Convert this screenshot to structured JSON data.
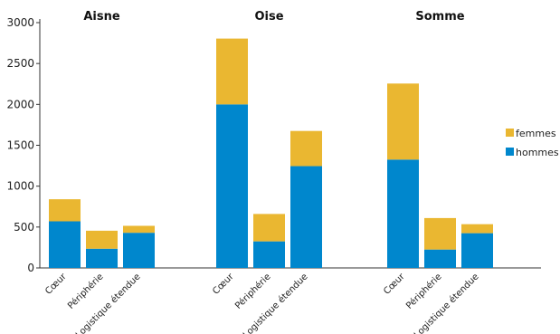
{
  "chart_data": {
    "type": "bar",
    "stacked": true,
    "groups": [
      {
        "title": "Aisne",
        "categories": [
          "Cœur",
          "Périphérie",
          "Logistique  étendue"
        ],
        "series": [
          {
            "name": "hommes",
            "values": [
              570,
              235,
              430
            ]
          },
          {
            "name": "femmes",
            "values": [
              270,
              220,
              85
            ]
          }
        ]
      },
      {
        "title": "Oise",
        "categories": [
          "Cœur",
          "Périphérie",
          "Logistique  étendue"
        ],
        "series": [
          {
            "name": "hommes",
            "values": [
              2000,
              325,
              1245
            ]
          },
          {
            "name": "femmes",
            "values": [
              805,
              335,
              430
            ]
          }
        ]
      },
      {
        "title": "Somme",
        "categories": [
          "Cœur",
          "Périphérie",
          "Logistique  étendue"
        ],
        "series": [
          {
            "name": "hommes",
            "values": [
              1325,
              225,
              425
            ]
          },
          {
            "name": "femmes",
            "values": [
              930,
              385,
              110
            ]
          }
        ]
      }
    ],
    "ylim": [
      0,
      3000
    ],
    "yticks": [
      0,
      500,
      1000,
      1500,
      2000,
      2500,
      3000
    ],
    "legend": {
      "placement": "right",
      "entries": [
        "femmes",
        "hommes"
      ]
    },
    "colors": {
      "hommes": "#0087cd",
      "femmes": "#eab731"
    },
    "grid": false
  }
}
